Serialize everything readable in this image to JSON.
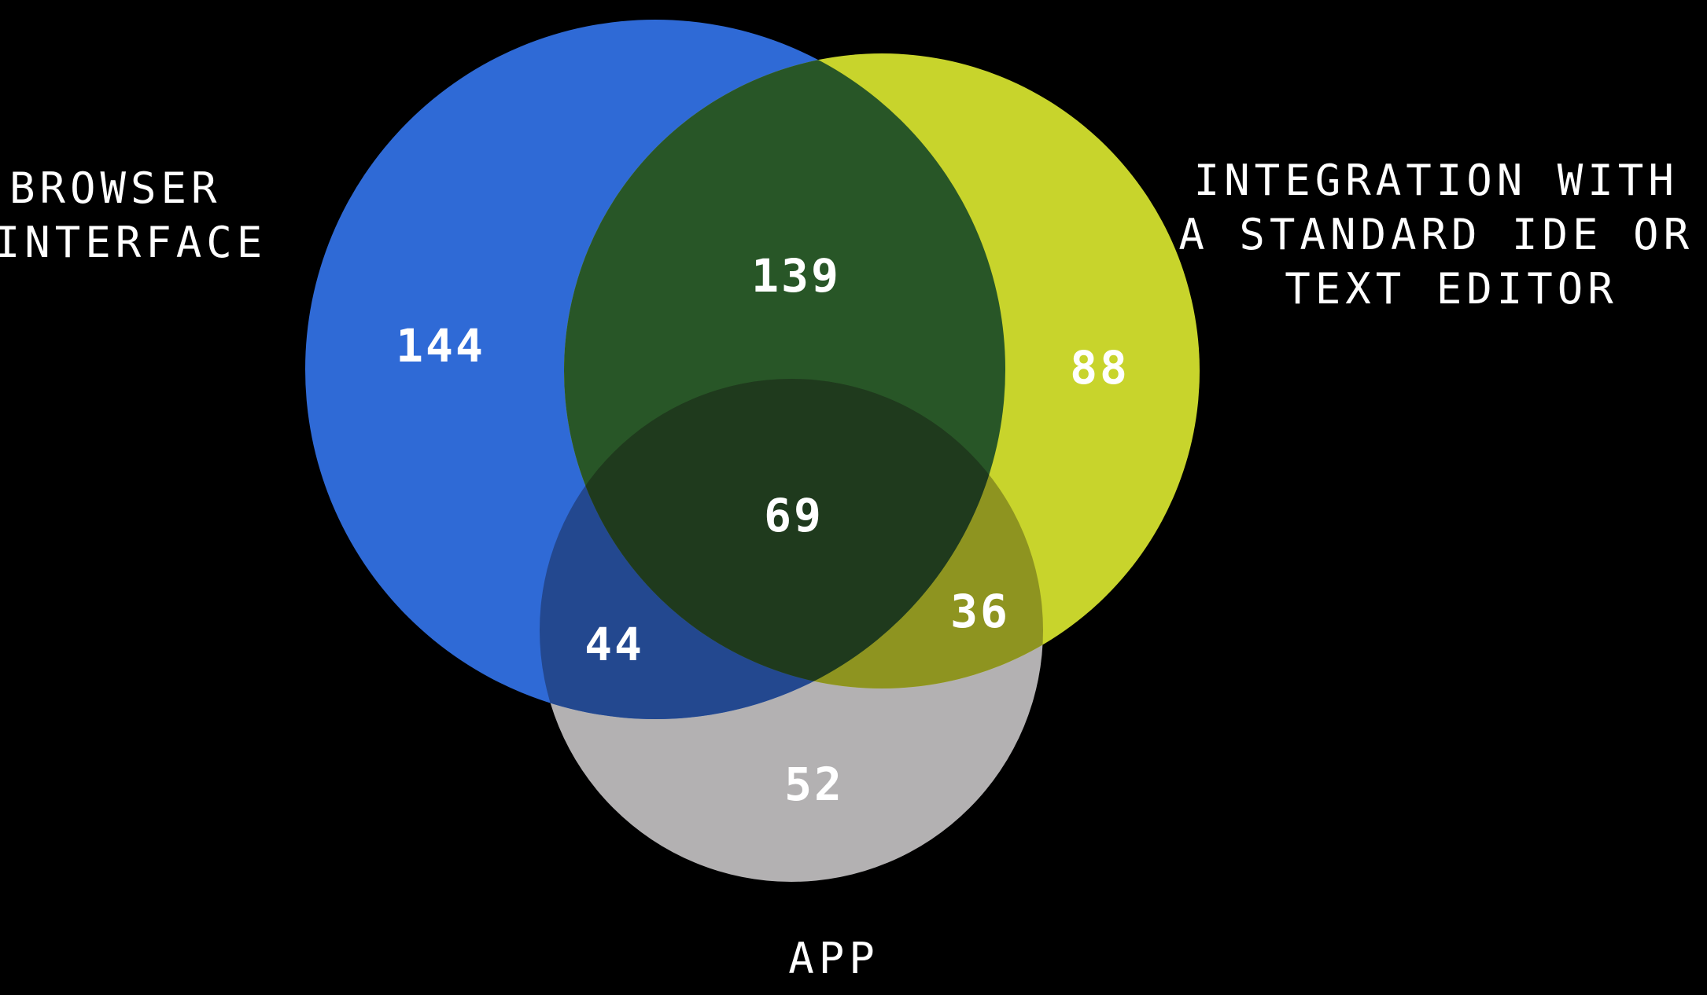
{
  "diagram": {
    "type": "venn",
    "background": "#000000",
    "sets": [
      {
        "id": "browser",
        "label_lines": [
          "BROWSER",
          "INTERFACE"
        ],
        "color": "#2F6AD6"
      },
      {
        "id": "ide",
        "label_lines": [
          "INTEGRATION WITH",
          "A STANDARD IDE OR",
          "TEXT EDITOR"
        ],
        "color": "#C8D42C"
      },
      {
        "id": "app",
        "label_lines": [
          "APP"
        ],
        "color": "#B3B1B2"
      }
    ],
    "regions": {
      "browser_only": "144",
      "ide_only": "88",
      "app_only": "52",
      "browser_ide": "139",
      "browser_app": "44",
      "ide_app": "36",
      "all_three": "69"
    },
    "region_colors": {
      "browser_ide": "#285627",
      "browser_app": "#23488F",
      "ide_app": "#8E9420",
      "all_three": "#1F3A1D"
    }
  }
}
